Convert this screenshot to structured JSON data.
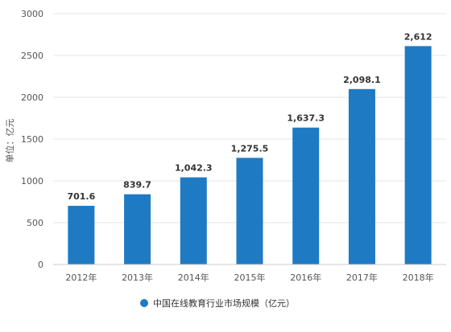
{
  "chart_data": {
    "type": "bar",
    "categories": [
      "2012年",
      "2013年",
      "2014年",
      "2015年",
      "2016年",
      "2017年",
      "2018年"
    ],
    "series": [
      {
        "name": "中国在线教育行业市场规模（亿元）",
        "values": [
          701.6,
          839.7,
          1042.3,
          1275.5,
          1637.3,
          2098.1,
          2612
        ],
        "labels": [
          "701.6",
          "839.7",
          "1,042.3",
          "1,275.5",
          "1,637.3",
          "2,098.1",
          "2,612"
        ],
        "color": "#1f7ac4"
      }
    ],
    "yticks": [
      0,
      500,
      1000,
      1500,
      2000,
      2500,
      3000
    ],
    "ylim": [
      0,
      3000
    ],
    "ylabel": "单位：亿元",
    "grid": true,
    "legend": "bottom-center"
  }
}
